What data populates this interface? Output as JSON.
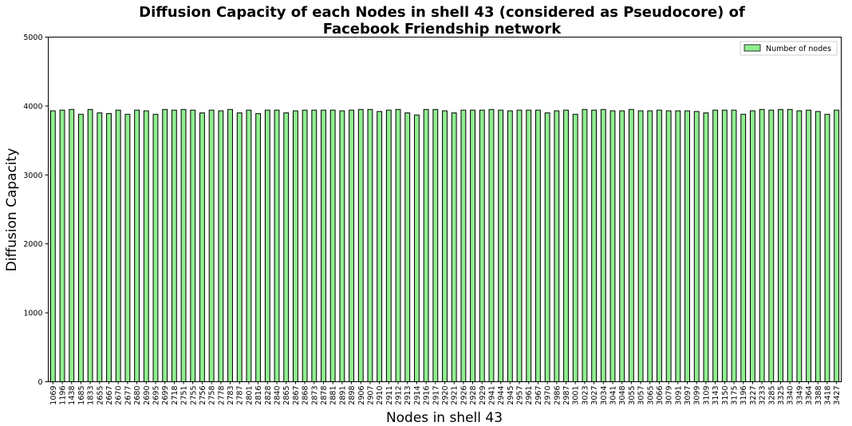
{
  "chart_data": {
    "type": "bar",
    "title_line1": "Diffusion Capacity of each Nodes in shell 43 (considered as Pseudocore) of",
    "title_line2": "Facebook Friendship network",
    "xlabel": "Nodes in shell 43",
    "ylabel": "Diffusion Capacity",
    "ylim": [
      0,
      5000
    ],
    "yticks": [
      0,
      1000,
      2000,
      3000,
      4000,
      5000
    ],
    "legend": {
      "label": "Number of nodes",
      "position": "top-right"
    },
    "bar_color": "#90ee90",
    "edge_color": "#000000",
    "grid": false,
    "categories": [
      "1069",
      "1196",
      "1438",
      "1685",
      "1833",
      "2655",
      "2667",
      "2670",
      "2677",
      "2680",
      "2690",
      "2695",
      "2699",
      "2718",
      "2751",
      "2755",
      "2756",
      "2758",
      "2778",
      "2783",
      "2787",
      "2801",
      "2816",
      "2828",
      "2840",
      "2865",
      "2867",
      "2868",
      "2873",
      "2878",
      "2881",
      "2891",
      "2898",
      "2906",
      "2907",
      "2910",
      "2911",
      "2912",
      "2913",
      "2914",
      "2916",
      "2917",
      "2920",
      "2921",
      "2926",
      "2928",
      "2929",
      "2941",
      "2944",
      "2945",
      "2957",
      "2961",
      "2967",
      "2970",
      "2986",
      "2987",
      "3001",
      "3023",
      "3027",
      "3034",
      "3041",
      "3048",
      "3055",
      "3057",
      "3065",
      "3066",
      "3079",
      "3091",
      "3097",
      "3099",
      "3109",
      "3143",
      "3150",
      "3175",
      "3196",
      "3227",
      "3233",
      "3285",
      "3325",
      "3340",
      "3349",
      "3364",
      "3388",
      "3418",
      "3427"
    ],
    "values": [
      3930,
      3940,
      3950,
      3880,
      3950,
      3900,
      3890,
      3940,
      3880,
      3940,
      3930,
      3880,
      3950,
      3940,
      3950,
      3940,
      3900,
      3940,
      3930,
      3950,
      3900,
      3940,
      3890,
      3940,
      3940,
      3900,
      3930,
      3940,
      3940,
      3940,
      3940,
      3930,
      3940,
      3950,
      3950,
      3920,
      3940,
      3950,
      3900,
      3870,
      3950,
      3950,
      3930,
      3900,
      3940,
      3940,
      3940,
      3950,
      3940,
      3930,
      3940,
      3940,
      3940,
      3900,
      3930,
      3940,
      3880,
      3950,
      3940,
      3950,
      3930,
      3930,
      3950,
      3930,
      3930,
      3940,
      3930,
      3930,
      3930,
      3920,
      3900,
      3940,
      3940,
      3940,
      3880,
      3930,
      3950,
      3940,
      3950,
      3950,
      3930,
      3940,
      3920,
      3880,
      3940
    ]
  }
}
